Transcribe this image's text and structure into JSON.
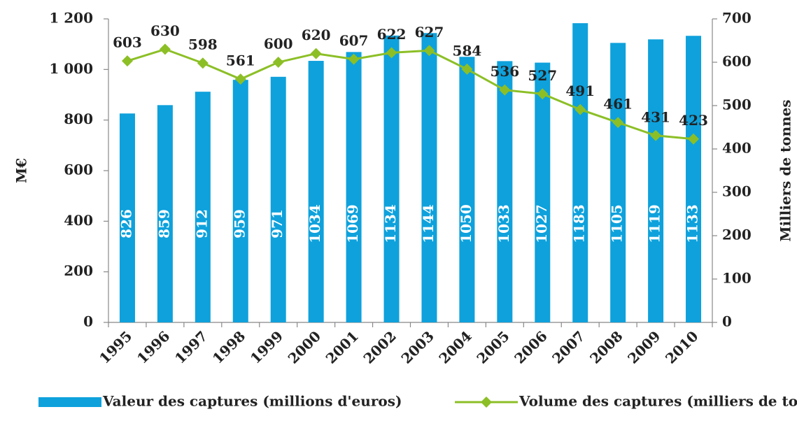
{
  "chart_data": {
    "type": "bar",
    "categories": [
      "1995",
      "1996",
      "1997",
      "1998",
      "1999",
      "2000",
      "2001",
      "2002",
      "2003",
      "2004",
      "2005",
      "2006",
      "2007",
      "2008",
      "2009",
      "2010"
    ],
    "series": [
      {
        "name": "Valeur des captures (millions d'euros)",
        "type": "bar",
        "color": "#0ea1dc",
        "values": [
          826,
          859,
          912,
          959,
          971,
          1034,
          1069,
          1134,
          1144,
          1050,
          1033,
          1027,
          1183,
          1105,
          1119,
          1133
        ]
      },
      {
        "name": "Volume des captures (milliers de tonnes)",
        "type": "line",
        "axis": "y2",
        "color": "#8cbf26",
        "values": [
          603,
          630,
          598,
          561,
          600,
          620,
          607,
          622,
          627,
          584,
          536,
          527,
          491,
          461,
          431,
          423
        ]
      }
    ],
    "ylabel": "M€",
    "y2label": "Milliers de tonnes",
    "ylim": [
      0,
      1200
    ],
    "yticks": [
      0,
      200,
      400,
      600,
      800,
      {
        "value": 1000,
        "label": "1 000"
      },
      {
        "value": 1200,
        "label": "1 200"
      }
    ],
    "y2lim": [
      0,
      700
    ],
    "y2ticks": [
      0,
      100,
      200,
      300,
      400,
      500,
      600,
      700
    ],
    "grid": false,
    "legend": "bottom"
  }
}
